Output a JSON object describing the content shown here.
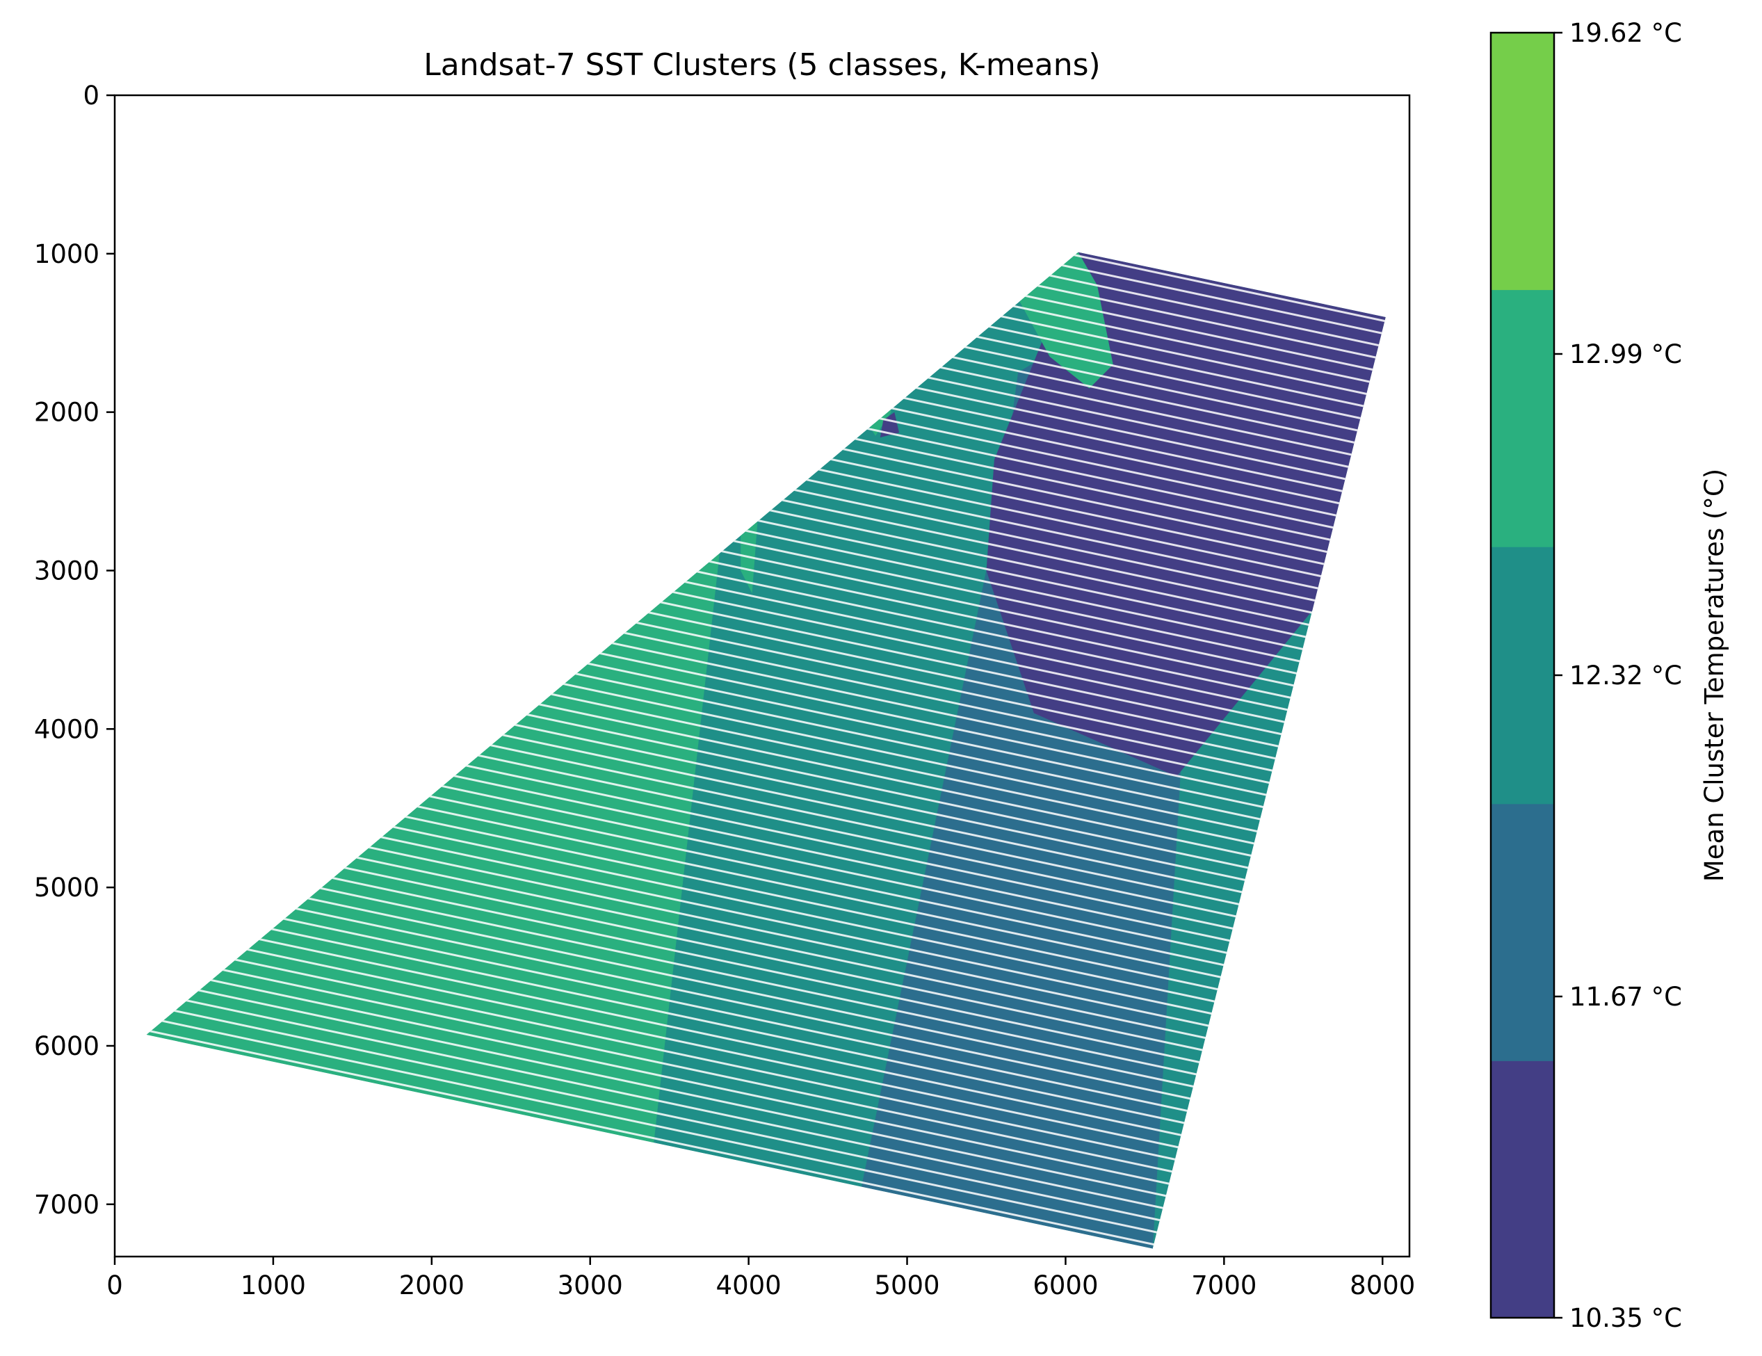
{
  "chart_data": {
    "type": "heatmap",
    "title": "Landsat-7 SST Clusters (5 classes, K-means)",
    "xlabel": "",
    "ylabel": "",
    "xlim": [
      0,
      8170
    ],
    "ylim": [
      7330,
      0
    ],
    "x_ticks": [
      0,
      1000,
      2000,
      3000,
      4000,
      5000,
      6000,
      7000,
      8000
    ],
    "y_ticks": [
      0,
      1000,
      2000,
      3000,
      4000,
      5000,
      6000,
      7000
    ],
    "colorbar": {
      "label": "Mean Cluster Temperatures (°C)",
      "tick_labels": [
        "10.35 °C",
        "11.67 °C",
        "12.32 °C",
        "12.99 °C",
        "19.62 °C"
      ],
      "classes": [
        {
          "color": "#433e85"
        },
        {
          "color": "#2c6e8e"
        },
        {
          "color": "#1f8f88"
        },
        {
          "color": "#2ab07f"
        },
        {
          "color": "#75ce4a"
        }
      ]
    },
    "scene_footprint": [
      [
        6080,
        990
      ],
      [
        8020,
        1400
      ],
      [
        6550,
        7280
      ],
      [
        200,
        5930
      ]
    ],
    "regions": [
      {
        "class": 3,
        "polygon": [
          [
            200,
            5930
          ],
          [
            700,
            4150
          ],
          [
            1200,
            3900
          ],
          [
            1900,
            3400
          ],
          [
            2600,
            2700
          ],
          [
            3100,
            2150
          ],
          [
            3500,
            2060
          ],
          [
            3900,
            2150
          ],
          [
            3400,
            6630
          ]
        ]
      },
      {
        "class": 2,
        "polygon": [
          [
            3400,
            6630
          ],
          [
            3900,
            2150
          ],
          [
            4100,
            2120
          ],
          [
            3750,
            6700
          ]
        ]
      },
      {
        "class": 3,
        "polygon": [
          [
            3950,
            2500
          ],
          [
            4150,
            2400
          ],
          [
            4300,
            2900
          ],
          [
            4100,
            3300
          ],
          [
            3950,
            3000
          ]
        ]
      },
      {
        "class": 2,
        "polygon": [
          [
            3750,
            6700
          ],
          [
            4100,
            2120
          ],
          [
            4700,
            2000
          ],
          [
            4900,
            2150
          ],
          [
            5400,
            1850
          ],
          [
            5700,
            1750
          ],
          [
            5600,
            2500
          ],
          [
            4700,
            6950
          ]
        ]
      },
      {
        "class": 1,
        "polygon": [
          [
            4700,
            6950
          ],
          [
            5600,
            2500
          ],
          [
            5700,
            1750
          ],
          [
            6100,
            1500
          ],
          [
            6200,
            1400
          ],
          [
            6900,
            1300
          ],
          [
            6550,
            7280
          ]
        ]
      },
      {
        "class": 0,
        "polygon": [
          [
            5550,
            2300
          ],
          [
            6080,
            990
          ],
          [
            8020,
            1400
          ],
          [
            7600,
            3200
          ],
          [
            6700,
            4300
          ],
          [
            5800,
            3900
          ],
          [
            5500,
            3000
          ]
        ]
      },
      {
        "class": 3,
        "polygon": [
          [
            5600,
            1100
          ],
          [
            6080,
            990
          ],
          [
            6200,
            1200
          ],
          [
            6300,
            1700
          ],
          [
            6150,
            1850
          ],
          [
            5900,
            1650
          ]
        ]
      },
      {
        "class": 3,
        "polygon": [
          [
            4650,
            1900
          ],
          [
            4750,
            1350
          ],
          [
            4800,
            1300
          ],
          [
            4850,
            1700
          ],
          [
            4900,
            2000
          ],
          [
            4800,
            2150
          ]
        ]
      },
      {
        "class": 0,
        "polygon": [
          [
            4850,
            2050
          ],
          [
            4920,
            2000
          ],
          [
            4950,
            2130
          ],
          [
            4830,
            2160
          ]
        ]
      },
      {
        "class": 3,
        "polygon": [
          [
            2850,
            2680
          ],
          [
            3050,
            2620
          ],
          [
            3080,
            2780
          ],
          [
            2900,
            2800
          ]
        ]
      }
    ]
  }
}
